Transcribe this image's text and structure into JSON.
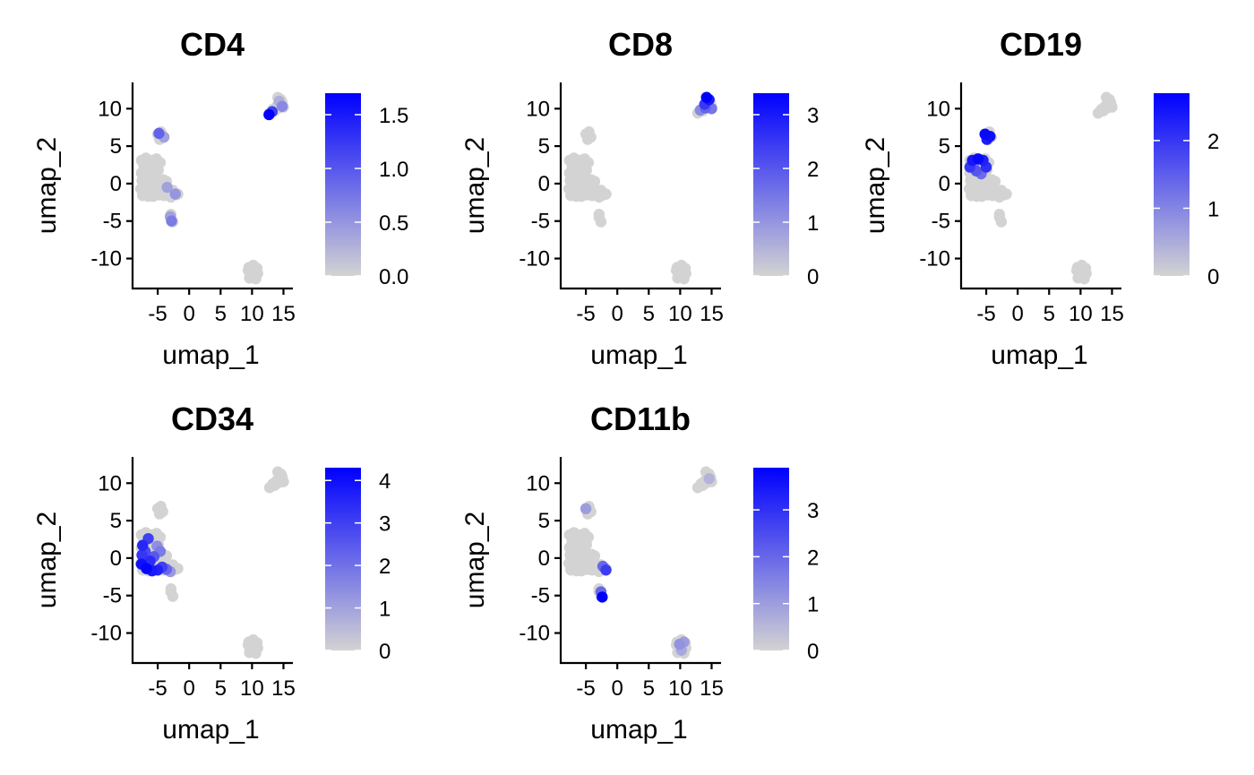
{
  "chart_data": [
    {
      "type": "scatter",
      "title": "CD4",
      "xlabel": "umap_1",
      "ylabel": "umap_2",
      "xlim": [
        -9,
        16.5
      ],
      "ylim": [
        -14,
        13.5
      ],
      "xticks": [
        "-5",
        "0",
        "5",
        "10",
        "15"
      ],
      "yticks": [
        "10",
        "5",
        "0",
        "-5",
        "-10"
      ],
      "colorbar": {
        "min": 0,
        "max": 1.7,
        "ticks": [
          "0.0",
          "0.5",
          "1.0",
          "1.5"
        ],
        "low_color": "#d3d3d3",
        "high_color": "#0000ff"
      },
      "highlights": [
        {
          "x": -4.8,
          "y": 6.7,
          "value": 0.9
        },
        {
          "x": -4.0,
          "y": 6.2,
          "value": 0.4
        },
        {
          "x": -2.8,
          "y": -5.0,
          "value": 0.7
        },
        {
          "x": -3.0,
          "y": -4.4,
          "value": 0.4
        },
        {
          "x": -3.5,
          "y": -0.5,
          "value": 0.4
        },
        {
          "x": -2.2,
          "y": -1.4,
          "value": 0.5
        },
        {
          "x": 12.7,
          "y": 9.2,
          "value": 1.7
        },
        {
          "x": 13.2,
          "y": 9.6,
          "value": 1.2
        },
        {
          "x": 14.8,
          "y": 10.3,
          "value": 0.6
        },
        {
          "x": 14.3,
          "y": 11.0,
          "value": 0.3
        }
      ]
    },
    {
      "type": "scatter",
      "title": "CD8",
      "xlabel": "umap_1",
      "ylabel": "umap_2",
      "xlim": [
        -9,
        16.5
      ],
      "ylim": [
        -14,
        13.5
      ],
      "xticks": [
        "-5",
        "0",
        "5",
        "10",
        "15"
      ],
      "yticks": [
        "10",
        "5",
        "0",
        "-5",
        "-10"
      ],
      "colorbar": {
        "min": 0,
        "max": 3.4,
        "ticks": [
          "0",
          "1",
          "2",
          "3"
        ],
        "low_color": "#d3d3d3",
        "high_color": "#0000ff"
      },
      "highlights": [
        {
          "x": 14.2,
          "y": 11.5,
          "value": 3.4
        },
        {
          "x": 14.6,
          "y": 11.2,
          "value": 3.0
        },
        {
          "x": 13.9,
          "y": 10.6,
          "value": 2.5
        },
        {
          "x": 15.0,
          "y": 10.0,
          "value": 1.5
        },
        {
          "x": 13.2,
          "y": 9.8,
          "value": 1.2
        },
        {
          "x": 14.0,
          "y": 10.1,
          "value": 1.8
        }
      ]
    },
    {
      "type": "scatter",
      "title": "CD19",
      "xlabel": "umap_1",
      "ylabel": "umap_2",
      "xlim": [
        -9,
        16.5
      ],
      "ylim": [
        -14,
        13.5
      ],
      "xticks": [
        "-5",
        "0",
        "5",
        "10",
        "15"
      ],
      "yticks": [
        "10",
        "5",
        "0",
        "-5",
        "-10"
      ],
      "colorbar": {
        "min": 0,
        "max": 2.7,
        "ticks": [
          "0",
          "1",
          "2"
        ],
        "low_color": "#d3d3d3",
        "high_color": "#0000ff"
      },
      "highlights": [
        {
          "x": -5.2,
          "y": 6.6,
          "value": 2.6
        },
        {
          "x": -4.4,
          "y": 6.3,
          "value": 2.5
        },
        {
          "x": -4.9,
          "y": 5.9,
          "value": 2.3
        },
        {
          "x": -7.2,
          "y": 3.1,
          "value": 2.4
        },
        {
          "x": -6.3,
          "y": 3.3,
          "value": 2.6
        },
        {
          "x": -5.5,
          "y": 3.1,
          "value": 2.3
        },
        {
          "x": -7.6,
          "y": 2.2,
          "value": 2.0
        },
        {
          "x": -5.0,
          "y": 2.2,
          "value": 2.1
        },
        {
          "x": -6.6,
          "y": 1.7,
          "value": 1.6
        },
        {
          "x": -7.0,
          "y": 2.6,
          "value": 1.1
        },
        {
          "x": -5.8,
          "y": 1.3,
          "value": 1.3
        }
      ]
    },
    {
      "type": "scatter",
      "title": "CD34",
      "xlabel": "umap_1",
      "ylabel": "umap_2",
      "xlim": [
        -9,
        16.5
      ],
      "ylim": [
        -14,
        13.5
      ],
      "xticks": [
        "-5",
        "0",
        "5",
        "10",
        "15"
      ],
      "yticks": [
        "10",
        "5",
        "0",
        "-5",
        "-10"
      ],
      "colorbar": {
        "min": 0,
        "max": 4.3,
        "ticks": [
          "0",
          "1",
          "2",
          "3",
          "4"
        ],
        "low_color": "#d3d3d3",
        "high_color": "#0000ff"
      },
      "highlights": [
        {
          "x": -7.4,
          "y": 1.7,
          "value": 3.5
        },
        {
          "x": -6.5,
          "y": 2.6,
          "value": 3.0
        },
        {
          "x": -7.5,
          "y": 0.4,
          "value": 3.2
        },
        {
          "x": -7.6,
          "y": -0.8,
          "value": 4.0
        },
        {
          "x": -6.8,
          "y": -1.4,
          "value": 4.2
        },
        {
          "x": -5.9,
          "y": -1.7,
          "value": 3.8
        },
        {
          "x": -5.0,
          "y": -1.6,
          "value": 3.6
        },
        {
          "x": -4.3,
          "y": -1.2,
          "value": 3.0
        },
        {
          "x": -5.6,
          "y": 0.2,
          "value": 2.5
        },
        {
          "x": -4.6,
          "y": 0.9,
          "value": 1.8
        },
        {
          "x": -3.6,
          "y": -1.5,
          "value": 2.2
        },
        {
          "x": -6.2,
          "y": -0.4,
          "value": 3.4
        },
        {
          "x": -5.1,
          "y": 1.6,
          "value": 1.4
        },
        {
          "x": -7.0,
          "y": 0.9,
          "value": 2.8
        },
        {
          "x": -3.0,
          "y": -1.8,
          "value": 1.2
        }
      ]
    },
    {
      "type": "scatter",
      "title": "CD11b",
      "xlabel": "umap_1",
      "ylabel": "umap_2",
      "xlim": [
        -9,
        16.5
      ],
      "ylim": [
        -14,
        13.5
      ],
      "xticks": [
        "-5",
        "0",
        "5",
        "10",
        "15"
      ],
      "yticks": [
        "10",
        "5",
        "0",
        "-5",
        "-10"
      ],
      "colorbar": {
        "min": 0,
        "max": 3.9,
        "ticks": [
          "0",
          "1",
          "2",
          "3"
        ],
        "low_color": "#d3d3d3",
        "high_color": "#0000ff"
      },
      "highlights": [
        {
          "x": -2.4,
          "y": -5.2,
          "value": 3.9
        },
        {
          "x": -2.6,
          "y": -4.5,
          "value": 2.0
        },
        {
          "x": -1.8,
          "y": -1.6,
          "value": 2.8
        },
        {
          "x": -2.3,
          "y": -1.1,
          "value": 2.0
        },
        {
          "x": -5.0,
          "y": 6.6,
          "value": 1.0
        },
        {
          "x": 9.9,
          "y": -11.5,
          "value": 1.2
        },
        {
          "x": 10.6,
          "y": -11.2,
          "value": 1.0
        },
        {
          "x": 10.2,
          "y": -12.3,
          "value": 0.8
        },
        {
          "x": 14.6,
          "y": 10.6,
          "value": 0.6
        }
      ]
    }
  ]
}
